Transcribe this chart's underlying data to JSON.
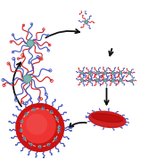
{
  "bg_color": "#ffffff",
  "core_color": "#7ab8b0",
  "core_edge_color": "#4a8880",
  "red_color": "#cc2222",
  "blue_color": "#4455bb",
  "vesicle_red": "#cc1111",
  "vesicle_bright": "#ee3333",
  "vesicle_dark": "#aa0000",
  "arrow_color": "#111111",
  "dash_color": "#cccccc",
  "figsize": [
    1.66,
    1.89
  ],
  "dpi": 100
}
